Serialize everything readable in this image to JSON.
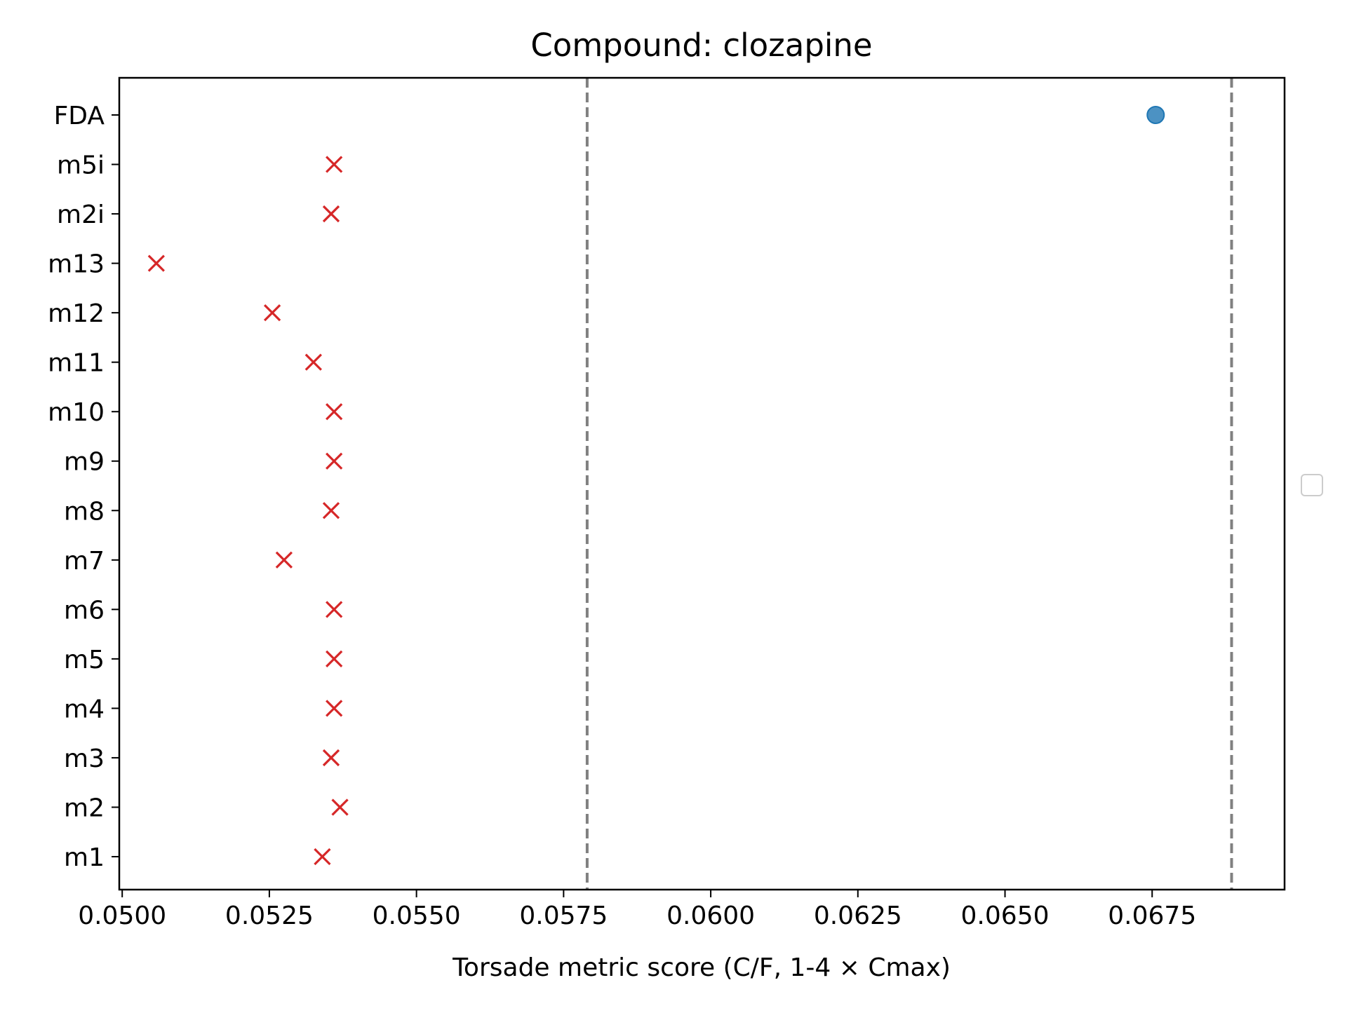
{
  "chart_data": {
    "type": "scatter",
    "title": "Compound: clozapine",
    "xlabel": "Torsade metric score (C/F, 1-4 × Cmax)",
    "ylabel": "",
    "xlim": [
      0.04995,
      0.06975
    ],
    "x_ticks": [
      "0.0500",
      "0.0525",
      "0.0550",
      "0.0575",
      "0.0600",
      "0.0625",
      "0.0650",
      "0.0675"
    ],
    "x_tick_values": [
      0.05,
      0.0525,
      0.055,
      0.0575,
      0.06,
      0.0625,
      0.065,
      0.0675
    ],
    "categories": [
      "m1",
      "m2",
      "m3",
      "m4",
      "m5",
      "m6",
      "m7",
      "m8",
      "m9",
      "m10",
      "m11",
      "m12",
      "m13",
      "m2i",
      "m5i",
      "FDA"
    ],
    "grid": false,
    "legend": "right, empty",
    "series": [
      {
        "marker": "x",
        "color": "#d62728",
        "points": [
          {
            "y": "m1",
            "x": 0.0534
          },
          {
            "y": "m2",
            "x": 0.0537
          },
          {
            "y": "m3",
            "x": 0.05355
          },
          {
            "y": "m4",
            "x": 0.0536
          },
          {
            "y": "m5",
            "x": 0.0536
          },
          {
            "y": "m6",
            "x": 0.0536
          },
          {
            "y": "m7",
            "x": 0.05275
          },
          {
            "y": "m8",
            "x": 0.05355
          },
          {
            "y": "m9",
            "x": 0.0536
          },
          {
            "y": "m10",
            "x": 0.0536
          },
          {
            "y": "m11",
            "x": 0.05325
          },
          {
            "y": "m12",
            "x": 0.05255
          },
          {
            "y": "m13",
            "x": 0.05058
          },
          {
            "y": "m2i",
            "x": 0.05355
          },
          {
            "y": "m5i",
            "x": 0.0536
          }
        ]
      },
      {
        "marker": "o",
        "color": "#1f77b4",
        "points": [
          {
            "y": "FDA",
            "x": 0.06756
          }
        ]
      }
    ],
    "reference_lines": [
      {
        "x": 0.0579,
        "style": "dashed",
        "color": "#808080"
      },
      {
        "x": 0.06885,
        "style": "dashed",
        "color": "#808080"
      }
    ]
  }
}
